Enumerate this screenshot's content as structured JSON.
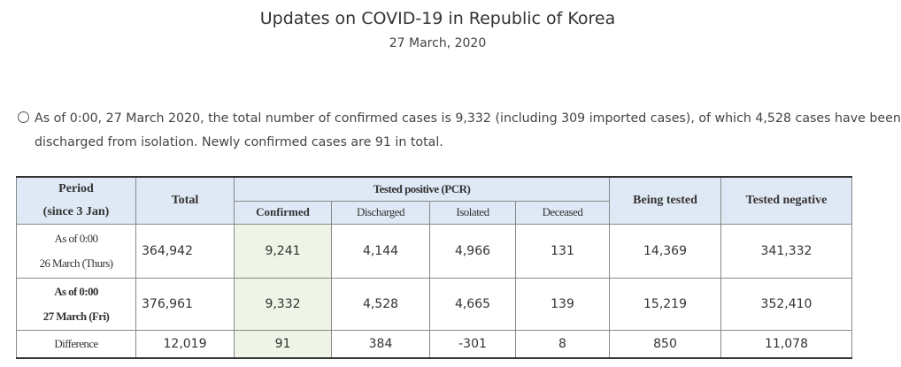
{
  "header": {
    "title": "Updates on COVID-19 in Republic of Korea",
    "date": "27 March, 2020"
  },
  "summary": [
    "As of 0:00, 27 March 2020, the total number of confirmed cases is 9,332 (including 309 imported cases), of which 4,528 cases have been",
    "discharged from isolation. Newly confirmed cases are 91 in total."
  ],
  "table": {
    "header": {
      "period": "Period",
      "period_sub": "(since 3 Jan)",
      "total": "Total",
      "tested_positive": "Tested positive (PCR)",
      "confirmed": "Confirmed",
      "discharged": "Discharged",
      "isolated": "Isolated",
      "deceased": "Deceased",
      "being_tested": "Being tested",
      "tested_negative": "Tested negative"
    },
    "rows": [
      {
        "period": [
          "As of 0:00",
          "26 March (Thurs)"
        ],
        "cells": [
          "364,942",
          "9,241",
          "4,144",
          "4,966",
          "131",
          "14,369",
          "341,332"
        ]
      },
      {
        "period": [
          "As of 0:00",
          "27 March (Fri)"
        ],
        "cells": [
          "376,961",
          "9,332",
          "4,528",
          "4,665",
          "139",
          "15,219",
          "352,410"
        ]
      },
      {
        "period": [
          "Difference"
        ],
        "cells": [
          "12,019",
          "91",
          "384",
          "-301",
          "8",
          "850",
          "11,078"
        ]
      }
    ]
  }
}
